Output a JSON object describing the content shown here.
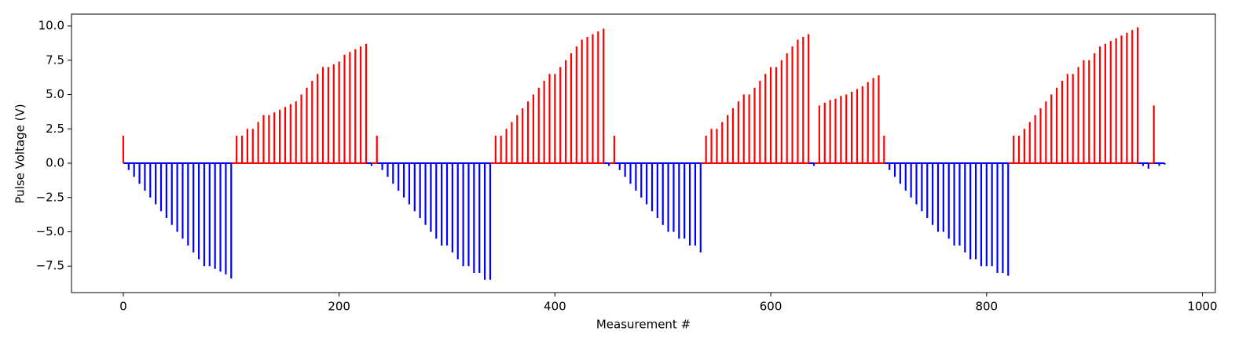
{
  "chart_data": {
    "type": "stem",
    "x_label": "Measurement #",
    "y_label": "Pulse Voltage (V)",
    "color_positive": "#ff0000",
    "color_negative": "#0000ff",
    "xlim": [
      -48,
      1012
    ],
    "ylim": [
      -9.43,
      10.86
    ],
    "xticks": [
      0,
      200,
      400,
      600,
      800,
      1000
    ],
    "yticks": [
      {
        "value": -7.5,
        "label": "−7.5"
      },
      {
        "value": -5.0,
        "label": "−5.0"
      },
      {
        "value": -2.5,
        "label": "−2.5"
      },
      {
        "value": 0.0,
        "label": "0.0"
      },
      {
        "value": 2.5,
        "label": "2.5"
      },
      {
        "value": 5.0,
        "label": "5.0"
      },
      {
        "value": 7.5,
        "label": "7.5"
      },
      {
        "value": 10.0,
        "label": "10.0"
      }
    ],
    "x": [
      0,
      5,
      10,
      15,
      20,
      25,
      30,
      35,
      40,
      45,
      50,
      55,
      60,
      65,
      70,
      75,
      80,
      85,
      90,
      95,
      100,
      105,
      110,
      115,
      120,
      125,
      130,
      135,
      140,
      145,
      150,
      155,
      160,
      165,
      170,
      175,
      180,
      185,
      190,
      195,
      200,
      205,
      210,
      215,
      220,
      225,
      230,
      235,
      240,
      245,
      250,
      255,
      260,
      265,
      270,
      275,
      280,
      285,
      290,
      295,
      300,
      305,
      310,
      315,
      320,
      325,
      330,
      335,
      340,
      345,
      350,
      355,
      360,
      365,
      370,
      375,
      380,
      385,
      390,
      395,
      400,
      405,
      410,
      415,
      420,
      425,
      430,
      435,
      440,
      445,
      450,
      455,
      460,
      465,
      470,
      475,
      480,
      485,
      490,
      495,
      500,
      505,
      510,
      515,
      520,
      525,
      530,
      535,
      540,
      545,
      550,
      555,
      560,
      565,
      570,
      575,
      580,
      585,
      590,
      595,
      600,
      605,
      610,
      615,
      620,
      625,
      630,
      635,
      640,
      645,
      650,
      655,
      660,
      665,
      670,
      675,
      680,
      685,
      690,
      695,
      700,
      705,
      710,
      715,
      720,
      725,
      730,
      735,
      740,
      745,
      750,
      755,
      760,
      765,
      770,
      775,
      780,
      785,
      790,
      795,
      800,
      805,
      810,
      815,
      820,
      825,
      830,
      835,
      840,
      845,
      850,
      855,
      860,
      865,
      870,
      875,
      880,
      885,
      890,
      895,
      900,
      905,
      910,
      915,
      920,
      925,
      930,
      935,
      940,
      945,
      950,
      955,
      960,
      965
    ],
    "values": [
      2.0,
      -0.5,
      -1.0,
      -1.5,
      -2.0,
      -2.5,
      -3.0,
      -3.5,
      -4.0,
      -4.5,
      -5.0,
      -5.5,
      -6.0,
      -6.5,
      -7.0,
      -7.5,
      -7.5,
      -7.7,
      -7.9,
      -8.1,
      -8.4,
      2.0,
      2.0,
      2.5,
      2.5,
      3.0,
      3.5,
      3.5,
      3.7,
      3.9,
      4.1,
      4.3,
      4.5,
      5.0,
      5.5,
      6.0,
      6.5,
      7.0,
      7.0,
      7.2,
      7.4,
      7.9,
      8.1,
      8.3,
      8.5,
      8.7,
      -0.2,
      2.0,
      -0.5,
      -1.0,
      -1.5,
      -2.0,
      -2.5,
      -3.0,
      -3.5,
      -4.0,
      -4.5,
      -5.0,
      -5.5,
      -6.0,
      -6.0,
      -6.5,
      -7.0,
      -7.5,
      -7.5,
      -8.0,
      -8.0,
      -8.5,
      -8.5,
      2.0,
      2.0,
      2.5,
      3.0,
      3.5,
      4.0,
      4.5,
      5.0,
      5.5,
      6.0,
      6.5,
      6.5,
      7.0,
      7.5,
      8.0,
      8.5,
      9.0,
      9.2,
      9.4,
      9.6,
      9.8,
      -0.2,
      2.0,
      -0.5,
      -1.0,
      -1.5,
      -2.0,
      -2.5,
      -3.0,
      -3.5,
      -4.0,
      -4.5,
      -5.0,
      -5.0,
      -5.5,
      -5.5,
      -6.0,
      -6.0,
      -6.5,
      2.0,
      2.5,
      2.5,
      3.0,
      3.5,
      4.0,
      4.5,
      5.0,
      5.0,
      5.5,
      6.0,
      6.5,
      7.0,
      7.0,
      7.5,
      8.0,
      8.5,
      9.0,
      9.2,
      9.4,
      -0.2,
      4.2,
      4.4,
      4.6,
      4.7,
      4.9,
      5.0,
      5.2,
      5.4,
      5.6,
      5.9,
      6.2,
      6.4,
      2.0,
      -0.5,
      -1.0,
      -1.5,
      -2.0,
      -2.5,
      -3.0,
      -3.5,
      -4.0,
      -4.5,
      -5.0,
      -5.0,
      -5.5,
      -6.0,
      -6.0,
      -6.5,
      -7.0,
      -7.0,
      -7.5,
      -7.5,
      -7.5,
      -8.0,
      -8.0,
      -8.2,
      2.0,
      2.0,
      2.5,
      3.0,
      3.5,
      4.0,
      4.5,
      5.0,
      5.5,
      6.0,
      6.5,
      6.5,
      7.0,
      7.5,
      7.5,
      8.0,
      8.5,
      8.7,
      8.9,
      9.1,
      9.3,
      9.5,
      9.7,
      9.9,
      -0.2,
      -0.4,
      4.2,
      -0.2,
      -0.1
    ]
  }
}
